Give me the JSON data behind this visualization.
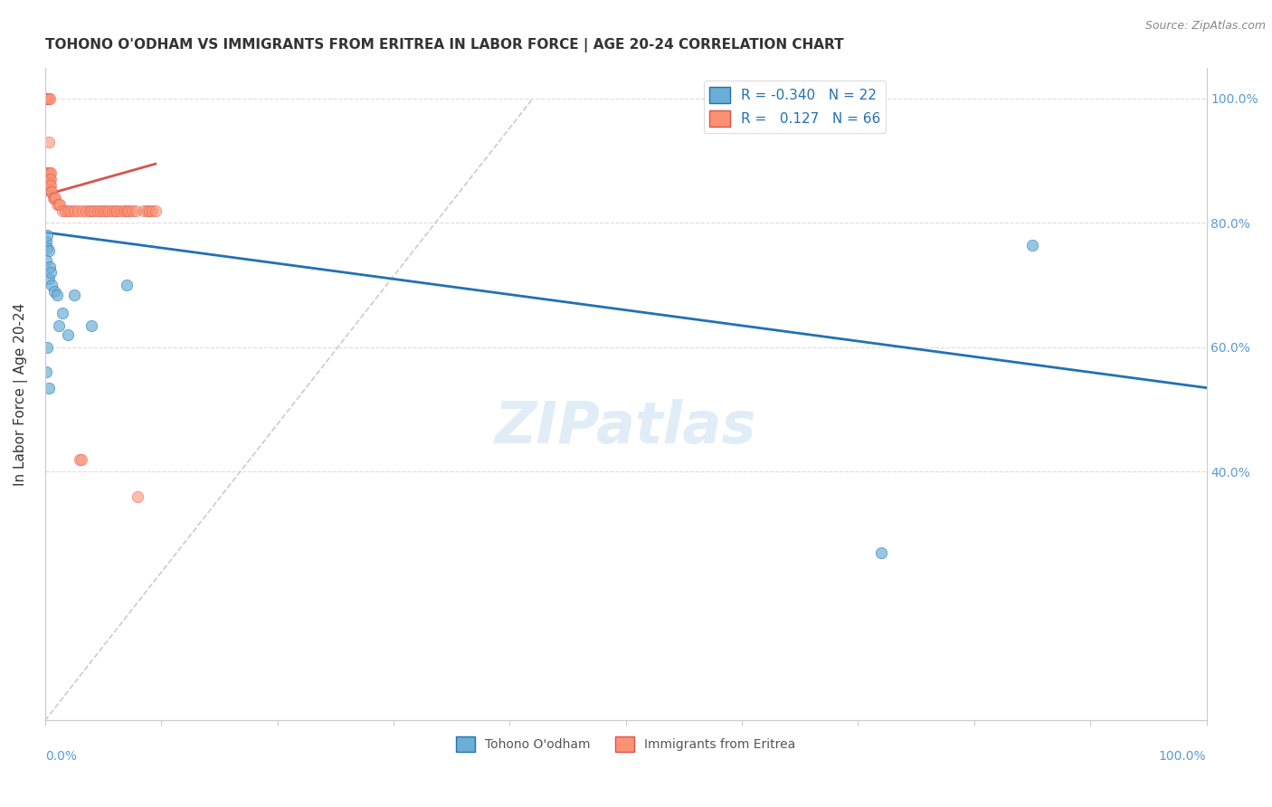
{
  "title": "TOHONO O'ODHAM VS IMMIGRANTS FROM ERITREA IN LABOR FORCE | AGE 20-24 CORRELATION CHART",
  "source": "Source: ZipAtlas.com",
  "ylabel": "In Labor Force | Age 20-24",
  "legend_label1": "Tohono O'odham",
  "legend_label2": "Immigrants from Eritrea",
  "watermark": "ZIPatlas",
  "blue_R": "-0.340",
  "blue_N": "22",
  "pink_R": "0.127",
  "pink_N": "66",
  "blue_color": "#6baed6",
  "pink_color": "#fc9272",
  "blue_line_color": "#2171b5",
  "pink_line_color": "#d9534f",
  "diag_line_color": "#cccccc",
  "grid_color": "#dddddd",
  "right_tick_color": "#5b9bd5",
  "blue_scatter_x": [
    0.001,
    0.002,
    0.003,
    0.001,
    0.004,
    0.002,
    0.003,
    0.006,
    0.008,
    0.01,
    0.015,
    0.012,
    0.02,
    0.025,
    0.04,
    0.002,
    0.001,
    0.003,
    0.07,
    0.85,
    0.72,
    0.005
  ],
  "blue_scatter_y": [
    0.77,
    0.76,
    0.755,
    0.74,
    0.73,
    0.78,
    0.71,
    0.7,
    0.69,
    0.685,
    0.655,
    0.635,
    0.62,
    0.685,
    0.635,
    0.6,
    0.56,
    0.535,
    0.7,
    0.765,
    0.27,
    0.72
  ],
  "pink_scatter_x": [
    0.001,
    0.001,
    0.001,
    0.001,
    0.001,
    0.001,
    0.001,
    0.001,
    0.002,
    0.002,
    0.002,
    0.002,
    0.002,
    0.003,
    0.003,
    0.003,
    0.003,
    0.003,
    0.004,
    0.004,
    0.004,
    0.004,
    0.005,
    0.005,
    0.005,
    0.005,
    0.006,
    0.007,
    0.008,
    0.009,
    0.01,
    0.012,
    0.013,
    0.015,
    0.017,
    0.02,
    0.022,
    0.025,
    0.028,
    0.03,
    0.031,
    0.032,
    0.035,
    0.038,
    0.04,
    0.042,
    0.045,
    0.048,
    0.05,
    0.052,
    0.055,
    0.058,
    0.06,
    0.062,
    0.065,
    0.068,
    0.07,
    0.072,
    0.075,
    0.078,
    0.08,
    0.085,
    0.088,
    0.09,
    0.092,
    0.095
  ],
  "pink_scatter_y": [
    1.0,
    1.0,
    1.0,
    1.0,
    1.0,
    0.88,
    0.88,
    0.87,
    1.0,
    1.0,
    0.88,
    0.87,
    0.86,
    1.0,
    0.93,
    0.88,
    0.87,
    0.86,
    1.0,
    0.88,
    0.87,
    0.86,
    0.88,
    0.87,
    0.86,
    0.85,
    0.85,
    0.84,
    0.84,
    0.84,
    0.83,
    0.83,
    0.83,
    0.82,
    0.82,
    0.82,
    0.82,
    0.82,
    0.82,
    0.42,
    0.42,
    0.82,
    0.82,
    0.82,
    0.82,
    0.82,
    0.82,
    0.82,
    0.82,
    0.82,
    0.82,
    0.82,
    0.82,
    0.82,
    0.82,
    0.82,
    0.82,
    0.82,
    0.82,
    0.82,
    0.36,
    0.82,
    0.82,
    0.82,
    0.82,
    0.82
  ],
  "blue_line_x": [
    0.0,
    1.0
  ],
  "blue_line_y": [
    0.785,
    0.535
  ],
  "pink_line_x": [
    0.0,
    0.095
  ],
  "pink_line_y": [
    0.845,
    0.895
  ],
  "diag_line_x": [
    0.0,
    0.42
  ],
  "diag_line_y": [
    0.0,
    1.0
  ],
  "xlim": [
    0.0,
    1.0
  ],
  "ylim": [
    0.0,
    1.05
  ],
  "yticks": [
    0.4,
    0.6,
    0.8,
    1.0
  ],
  "ytick_labels": [
    "40.0%",
    "60.0%",
    "80.0%",
    "100.0%"
  ],
  "xtick_left_label": "0.0%",
  "xtick_right_label": "100.0%"
}
